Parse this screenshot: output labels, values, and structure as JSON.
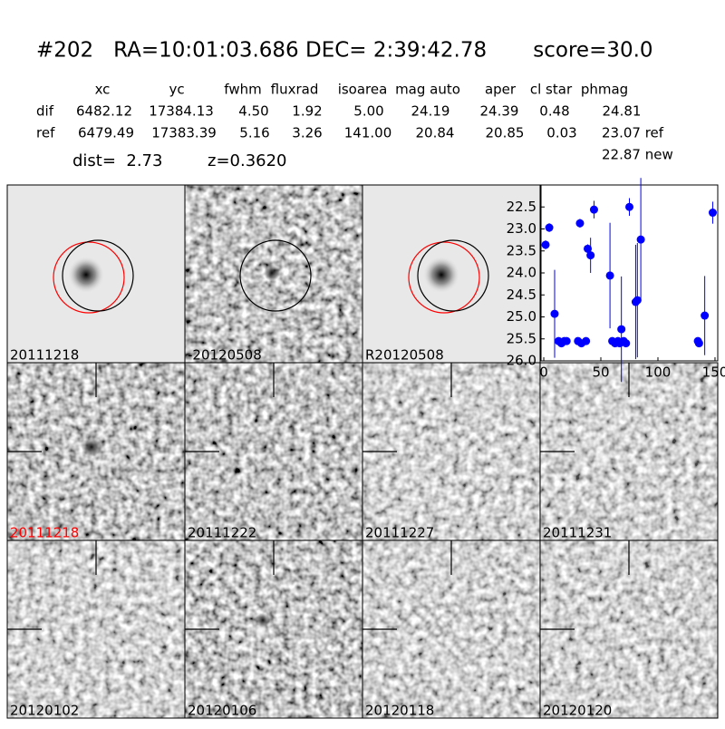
{
  "header": {
    "title": "#202   RA=10:01:03.686 DEC= 2:39:42.78       score=30.0",
    "columns": [
      "xc",
      "yc",
      "fwhm",
      "fluxrad",
      "isoarea",
      "mag auto",
      "aper",
      "cl star",
      "phmag"
    ],
    "rows": [
      {
        "label": "dif",
        "cells": [
          "6482.12",
          "17384.13",
          "4.50",
          "1.92",
          "5.00",
          "24.19",
          "24.39",
          "0.48",
          "24.81"
        ]
      },
      {
        "label": "ref",
        "cells": [
          "6479.49",
          "17383.39",
          "5.16",
          "3.26",
          "141.00",
          "20.84",
          "20.85",
          "0.03",
          "23.07 ref"
        ]
      }
    ],
    "extra_phmag": "22.87 new",
    "dist": "dist=  2.73",
    "z": "z=0.3620"
  },
  "panels": [
    "20111218",
    "-20120508",
    "R20120508",
    "20111218",
    "20111222",
    "20111227",
    "20111231",
    "20120102",
    "20120106",
    "20120118",
    "20120120"
  ],
  "chart_data": {
    "type": "scatter",
    "color": "#0000ff",
    "x": [
      1.6,
      4.8,
      9.5,
      13,
      15.5,
      18,
      20,
      31.7,
      30,
      33,
      37,
      38.5,
      41,
      44,
      58,
      60,
      62.5,
      65,
      68,
      66.5,
      70,
      72,
      75,
      80.5,
      82,
      85,
      135,
      136,
      141,
      148
    ],
    "values": [
      23.36,
      22.97,
      24.93,
      25.55,
      25.6,
      25.55,
      25.55,
      22.87,
      25.55,
      25.6,
      25.55,
      23.45,
      23.6,
      22.56,
      24.06,
      25.55,
      25.6,
      25.55,
      25.28,
      25.6,
      25.55,
      25.6,
      22.5,
      24.66,
      24.62,
      23.24,
      25.55,
      25.6,
      24.97,
      22.63
    ],
    "errors": [
      0.1,
      0.1,
      1.0,
      0.05,
      0.05,
      0.05,
      0.05,
      0.1,
      0.05,
      0.05,
      0.05,
      0.1,
      0.4,
      0.2,
      1.2,
      0.05,
      0.05,
      0.05,
      1.2,
      0.05,
      0.05,
      0.05,
      0.2,
      1.3,
      1.3,
      1.4,
      0.05,
      0.05,
      0.9,
      0.25
    ],
    "xlim": [
      -2.4,
      152.4
    ],
    "ylim": [
      26.0,
      22.0
    ],
    "xticks": [
      0,
      50,
      100,
      150
    ],
    "yticks": [
      22.5,
      {
        "value": 23,
        "label": "23.0"
      },
      23.5,
      {
        "value": 24,
        "label": "24.0"
      },
      24.5,
      {
        "value": 25,
        "label": "25.0"
      },
      25.5,
      {
        "value": 26,
        "label": "26.0"
      }
    ]
  }
}
